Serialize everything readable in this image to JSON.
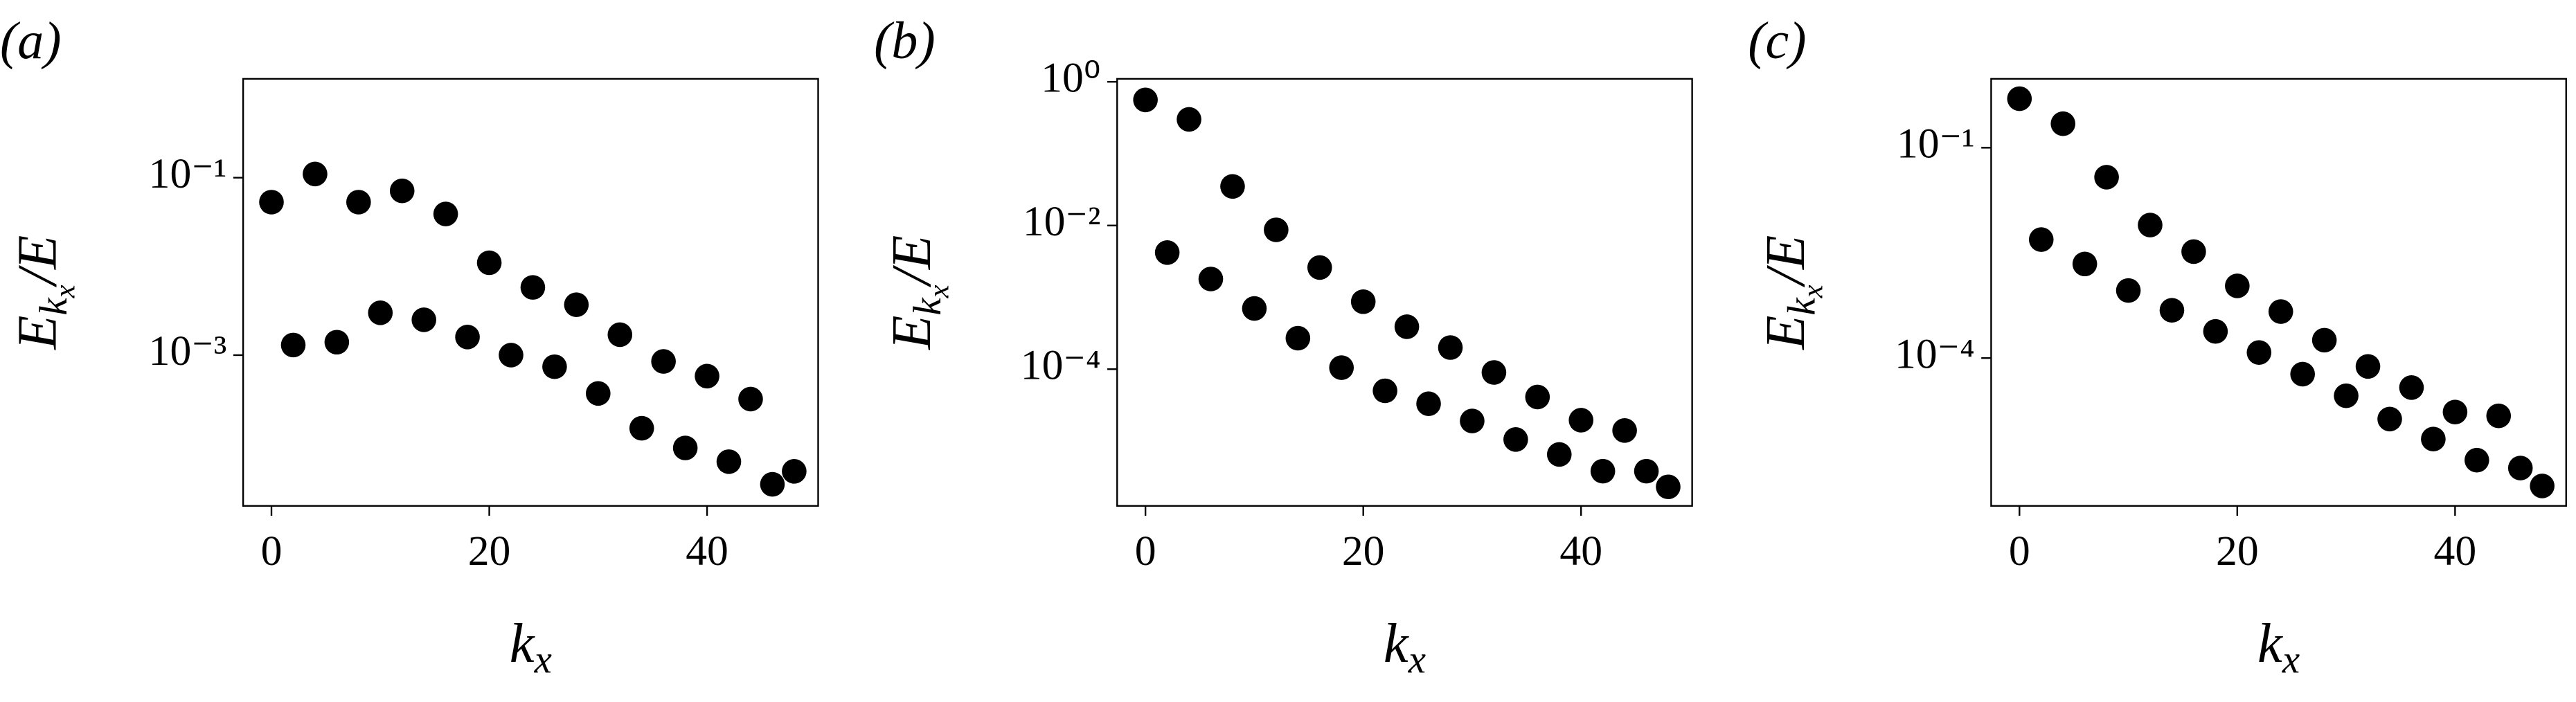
{
  "chart_data": [
    {
      "type": "scatter",
      "panel_label": "(a)",
      "xlabel": [
        "k",
        "x"
      ],
      "ylabel": [
        "E",
        "k",
        "x",
        "/E"
      ],
      "log_y": true,
      "color": "#000000",
      "x": [
        0,
        2,
        4,
        6,
        8,
        10,
        12,
        14,
        16,
        18,
        20,
        22,
        24,
        26,
        28,
        30,
        32,
        34,
        36,
        38,
        40,
        42,
        44,
        46,
        48
      ],
      "values": [
        0.053,
        0.0013,
        0.11,
        0.0014,
        0.053,
        0.003,
        0.071,
        0.0025,
        0.039,
        0.0016,
        0.011,
        0.001,
        0.0058,
        0.00074,
        0.0037,
        0.00037,
        0.0017,
        0.00015,
        0.00085,
        9e-05,
        0.00058,
        6.3e-05,
        0.00032,
        3.5e-05,
        4.9e-05
      ],
      "xlim": [
        -2.6,
        50.2
      ],
      "xticks": [
        0,
        20,
        40
      ],
      "ylim": [
        2e-05,
        1.3
      ],
      "yticks": [
        {
          "value": 0.1,
          "label": "10⁻¹"
        },
        {
          "value": 0.001,
          "label": "10⁻³"
        }
      ]
    },
    {
      "type": "scatter",
      "panel_label": "(b)",
      "xlabel": [
        "k",
        "x"
      ],
      "ylabel": [
        "E",
        "k",
        "x",
        "/E"
      ],
      "log_y": true,
      "color": "#000000",
      "x": [
        0,
        2,
        4,
        6,
        8,
        10,
        12,
        14,
        16,
        18,
        20,
        22,
        24,
        26,
        28,
        30,
        32,
        34,
        36,
        38,
        40,
        42,
        44,
        46,
        48
      ],
      "values": [
        0.56,
        0.0042,
        0.3,
        0.0018,
        0.035,
        0.0007,
        0.0087,
        0.00027,
        0.0026,
        0.000105,
        0.00087,
        5e-05,
        0.00039,
        3.3e-05,
        0.0002,
        1.9e-05,
        9e-05,
        1.05e-05,
        4.1e-05,
        6.5e-06,
        1.95e-05,
        3.8e-06,
        1.4e-05,
        3.8e-06,
        2.3e-06
      ],
      "xlim": [
        -2.6,
        50.2
      ],
      "xticks": [
        0,
        20,
        40
      ],
      "ylim": [
        1.25e-06,
        1.1
      ],
      "yticks": [
        {
          "value": 1,
          "label": "10⁰"
        },
        {
          "value": 0.01,
          "label": "10⁻²"
        },
        {
          "value": 0.0001,
          "label": "10⁻⁴"
        }
      ]
    },
    {
      "type": "scatter",
      "panel_label": "(c)",
      "xlabel": [
        "k",
        "x"
      ],
      "ylabel": [
        "E",
        "k",
        "x",
        "/E"
      ],
      "log_y": true,
      "color": "#000000",
      "x": [
        0,
        2,
        4,
        6,
        8,
        10,
        12,
        14,
        16,
        18,
        20,
        22,
        24,
        26,
        28,
        30,
        32,
        34,
        36,
        38,
        40,
        42,
        44,
        46,
        48
      ],
      "values": [
        0.5,
        0.0049,
        0.22,
        0.0022,
        0.038,
        0.00092,
        0.0079,
        0.00048,
        0.0033,
        0.00024,
        0.00107,
        0.00012,
        0.00046,
        5.9e-05,
        0.00018,
        2.9e-05,
        7.6e-05,
        1.35e-05,
        3.8e-05,
        7e-06,
        1.7e-05,
        3.5e-06,
        1.5e-05,
        2.7e-06,
        1.5e-06
      ],
      "xlim": [
        -2.6,
        50.2
      ],
      "xticks": [
        0,
        20,
        40
      ],
      "ylim": [
        7.8e-07,
        0.96
      ],
      "yticks": [
        {
          "value": 0.1,
          "label": "10⁻¹"
        },
        {
          "value": 0.0001,
          "label": "10⁻⁴"
        }
      ]
    }
  ]
}
